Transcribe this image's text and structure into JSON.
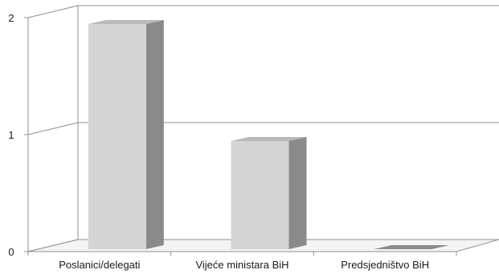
{
  "chart_data": {
    "type": "bar",
    "style": "3d-column",
    "categories": [
      "Poslanici/delegati",
      "Vijeće ministara BiH",
      "Predsjedništvo BiH"
    ],
    "values": [
      2,
      1,
      0
    ],
    "ylim": [
      0,
      2
    ],
    "yticks": [
      "0",
      "1",
      "2"
    ],
    "grid": true,
    "legend": "none",
    "colors": {
      "bar_front": "#d4d4d4",
      "bar_side": "#8a8a8a",
      "bar_top": "#b9b9b9",
      "grid": "#8f8f8f",
      "floor": "#d8d8d8"
    }
  }
}
